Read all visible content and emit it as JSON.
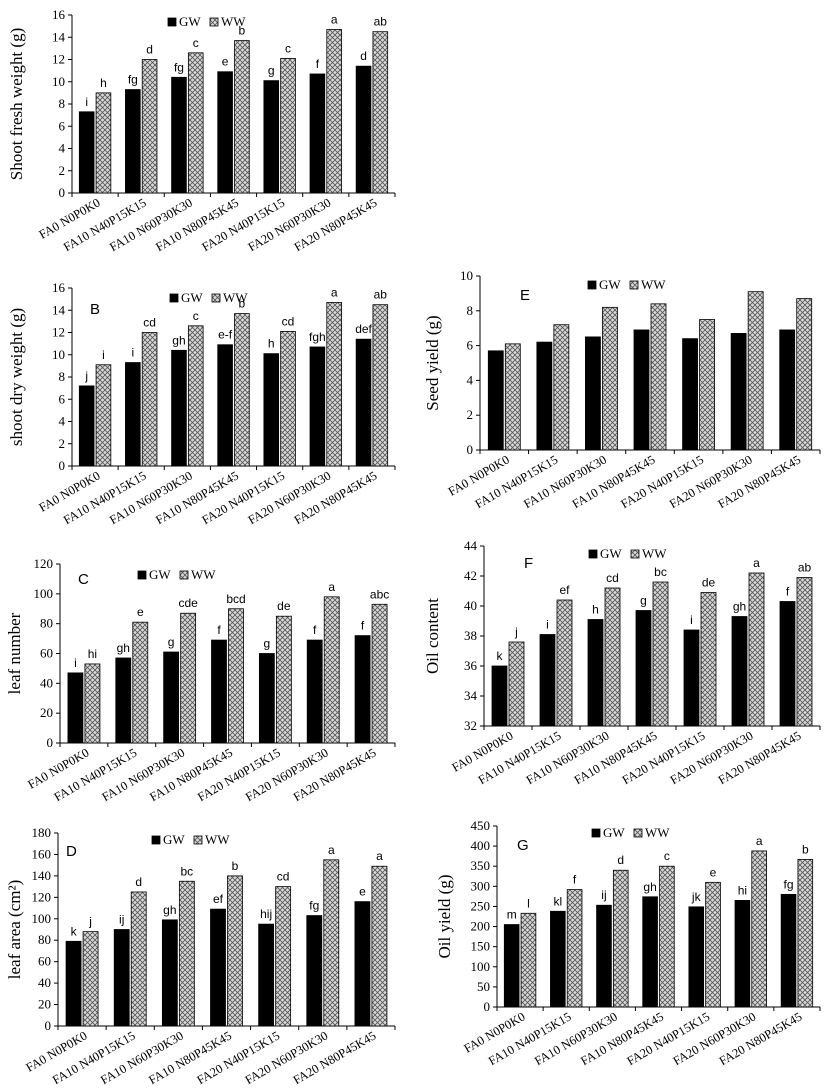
{
  "chart_data": [
    {
      "id": "A",
      "type": "bar",
      "panel_label": "",
      "ylabel": "Shoot fresh weight (g)",
      "ylim": [
        0,
        16
      ],
      "yticks": [
        "0",
        "2",
        "4",
        "6",
        "8",
        "10",
        "12",
        "14",
        "16"
      ],
      "categories": [
        "FA0 N0P0K0",
        "FA10 N40P15K15",
        "FA10 N60P30K30",
        "FA10 N80P45K45",
        "FA20 N40P15K15",
        "FA20 N60P30K30",
        "FA20 N80P45K45"
      ],
      "series": [
        {
          "name": "GW",
          "values": [
            7.3,
            9.3,
            10.4,
            10.9,
            10.1,
            10.7,
            11.4
          ],
          "letters": [
            "i",
            "fg",
            "fg",
            "e",
            "g",
            "f",
            "d"
          ]
        },
        {
          "name": "WW",
          "values": [
            9.0,
            12.0,
            12.6,
            13.7,
            12.1,
            14.7,
            14.5
          ],
          "letters": [
            "h",
            "d",
            "c",
            "b",
            "c",
            "a",
            "ab"
          ]
        }
      ]
    },
    {
      "id": "B",
      "type": "bar",
      "panel_label": "B",
      "ylabel": "shoot dry weight (g)",
      "ylim": [
        0,
        16
      ],
      "yticks": [
        "0",
        "2",
        "4",
        "6",
        "8",
        "10",
        "12",
        "14",
        "16"
      ],
      "categories": [
        "FA0 N0P0K0",
        "FA10 N40P15K15",
        "FA10 N60P30K30",
        "FA10 N80P45K45",
        "FA20 N40P15K15",
        "FA20 N60P30K30",
        "FA20 N80P45K45"
      ],
      "series": [
        {
          "name": "GW",
          "values": [
            7.2,
            9.3,
            10.4,
            10.9,
            10.1,
            10.7,
            11.4
          ],
          "letters": [
            "j",
            "i",
            "gh",
            "e-f",
            "h",
            "fgh",
            "def"
          ]
        },
        {
          "name": "WW",
          "values": [
            9.1,
            12.0,
            12.6,
            13.7,
            12.1,
            14.7,
            14.5
          ],
          "letters": [
            "i",
            "cd",
            "c",
            "b",
            "cd",
            "a",
            "ab"
          ]
        }
      ]
    },
    {
      "id": "C",
      "type": "bar",
      "panel_label": "C",
      "ylabel": "leaf number",
      "ylim": [
        0,
        120
      ],
      "yticks": [
        "0",
        "20",
        "40",
        "60",
        "80",
        "100",
        "120"
      ],
      "categories": [
        "FA0 N0P0K0",
        "FA10 N40P15K15",
        "FA10 N60P30K30",
        "FA10 N80P45K45",
        "FA20 N40P15K15",
        "FA20 N60P30K30",
        "FA20 N80P45K45"
      ],
      "series": [
        {
          "name": "GW",
          "values": [
            47,
            57,
            61,
            69,
            60,
            69,
            72
          ],
          "letters": [
            "i",
            "gh",
            "g",
            "f",
            "g",
            "f",
            "f"
          ]
        },
        {
          "name": "WW",
          "values": [
            53,
            81,
            87,
            90,
            85,
            98,
            93
          ],
          "letters": [
            "hi",
            "e",
            "cde",
            "bcd",
            "de",
            "a",
            "abc"
          ]
        }
      ]
    },
    {
      "id": "D",
      "type": "bar",
      "panel_label": "D",
      "ylabel": "leaf area (cm²)",
      "ylim": [
        0,
        180
      ],
      "yticks": [
        "0",
        "20",
        "40",
        "60",
        "80",
        "100",
        "120",
        "140",
        "160",
        "180"
      ],
      "categories": [
        "FA0 N0P0K0",
        "FA10 N40P15K15",
        "FA10 N60P30K30",
        "FA10 N80P45K45",
        "FA20 N40P15K15",
        "FA20 N60P30K30",
        "FA20 N80P45K45"
      ],
      "series": [
        {
          "name": "GW",
          "values": [
            79,
            90,
            99,
            109,
            95,
            103,
            116
          ],
          "letters": [
            "k",
            "ij",
            "gh",
            "ef",
            "hij",
            "fg",
            "e"
          ]
        },
        {
          "name": "WW",
          "values": [
            88,
            125,
            135,
            140,
            130,
            155,
            149
          ],
          "letters": [
            "j",
            "d",
            "bc",
            "b",
            "cd",
            "a",
            "a"
          ]
        }
      ]
    },
    {
      "id": "E",
      "type": "bar",
      "panel_label": "E",
      "ylabel": "Seed yield (g)",
      "ylim": [
        0,
        10
      ],
      "yticks": [
        "0",
        "2",
        "4",
        "6",
        "8",
        "10"
      ],
      "categories": [
        "FA0 N0P0K0",
        "FA10 N40P15K15",
        "FA10 N60P30K30",
        "FA10 N80P45K45",
        "FA20 N40P15K15",
        "FA20 N60P30K30",
        "FA20 N80P45K45"
      ],
      "series": [
        {
          "name": "GW",
          "values": [
            5.7,
            6.2,
            6.5,
            6.9,
            6.4,
            6.7,
            6.9
          ],
          "letters": [
            "",
            "",
            "",
            "",
            "",
            "",
            ""
          ]
        },
        {
          "name": "WW",
          "values": [
            6.1,
            7.2,
            8.2,
            8.4,
            7.5,
            9.1,
            8.7
          ],
          "letters": [
            "",
            "",
            "",
            "",
            "",
            "",
            ""
          ]
        }
      ]
    },
    {
      "id": "F",
      "type": "bar",
      "panel_label": "F",
      "ylabel": "Oil content",
      "ylim": [
        32,
        44
      ],
      "yticks": [
        "32",
        "34",
        "36",
        "38",
        "40",
        "42",
        "44"
      ],
      "categories": [
        "FA0 N0P0K0",
        "FA10 N40P15K15",
        "FA10 N60P30K30",
        "FA10 N80P45K45",
        "FA20 N40P15K15",
        "FA20 N60P30K30",
        "FA20 N80P45K45"
      ],
      "series": [
        {
          "name": "GW",
          "values": [
            36.0,
            38.1,
            39.1,
            39.7,
            38.4,
            39.3,
            40.3
          ],
          "letters": [
            "k",
            "i",
            "h",
            "g",
            "i",
            "gh",
            "f"
          ]
        },
        {
          "name": "WW",
          "values": [
            37.6,
            40.4,
            41.2,
            41.6,
            40.9,
            42.2,
            41.9
          ],
          "letters": [
            "j",
            "ef",
            "cd",
            "bc",
            "de",
            "a",
            "ab"
          ]
        }
      ]
    },
    {
      "id": "G",
      "type": "bar",
      "panel_label": "G",
      "ylabel": "Oil yield (g)",
      "ylim": [
        0,
        450
      ],
      "yticks": [
        "0",
        "50",
        "100",
        "150",
        "200",
        "250",
        "300",
        "350",
        "400",
        "450"
      ],
      "categories": [
        "FA0 N0P0K0",
        "FA10 N40P15K15",
        "FA10 N60P30K30",
        "FA10 N80P45K45",
        "FA20 N40P15K15",
        "FA20 N60P30K30",
        "FA20 N80P45K45"
      ],
      "series": [
        {
          "name": "GW",
          "values": [
            205,
            238,
            253,
            274,
            249,
            265,
            280
          ],
          "letters": [
            "m",
            "kl",
            "ij",
            "gh",
            "jk",
            "hi",
            "fg"
          ]
        },
        {
          "name": "WW",
          "values": [
            233,
            292,
            340,
            350,
            310,
            388,
            367
          ],
          "letters": [
            "l",
            "f",
            "d",
            "c",
            "e",
            "a",
            "b"
          ]
        }
      ]
    }
  ]
}
